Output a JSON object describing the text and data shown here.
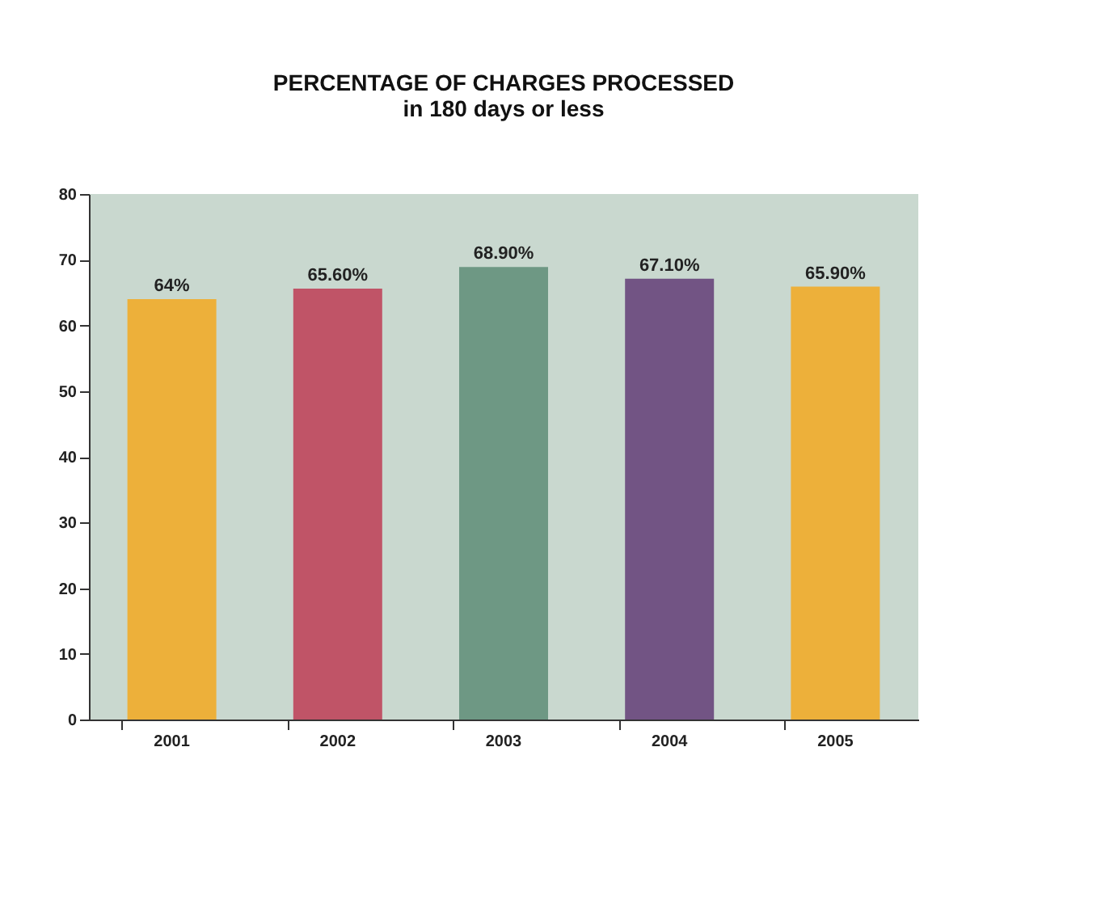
{
  "chart_data": {
    "type": "bar",
    "title": "PERCENTAGE OF CHARGES PROCESSED",
    "subtitle": "in 180 days or less",
    "categories": [
      "2001",
      "2002",
      "2003",
      "2004",
      "2005"
    ],
    "values": [
      64,
      65.6,
      68.9,
      67.1,
      65.9
    ],
    "colors": [
      "#edb03a",
      "#c05467",
      "#6e9884",
      "#725484",
      "#edb03a"
    ],
    "value_labels": [
      "64%",
      "65.60%",
      "68.90%",
      "67.10%",
      "65.90%"
    ],
    "ylim": [
      0,
      80
    ],
    "yticks": [
      0,
      10,
      20,
      30,
      40,
      50,
      60,
      70,
      80
    ],
    "grid": false
  }
}
